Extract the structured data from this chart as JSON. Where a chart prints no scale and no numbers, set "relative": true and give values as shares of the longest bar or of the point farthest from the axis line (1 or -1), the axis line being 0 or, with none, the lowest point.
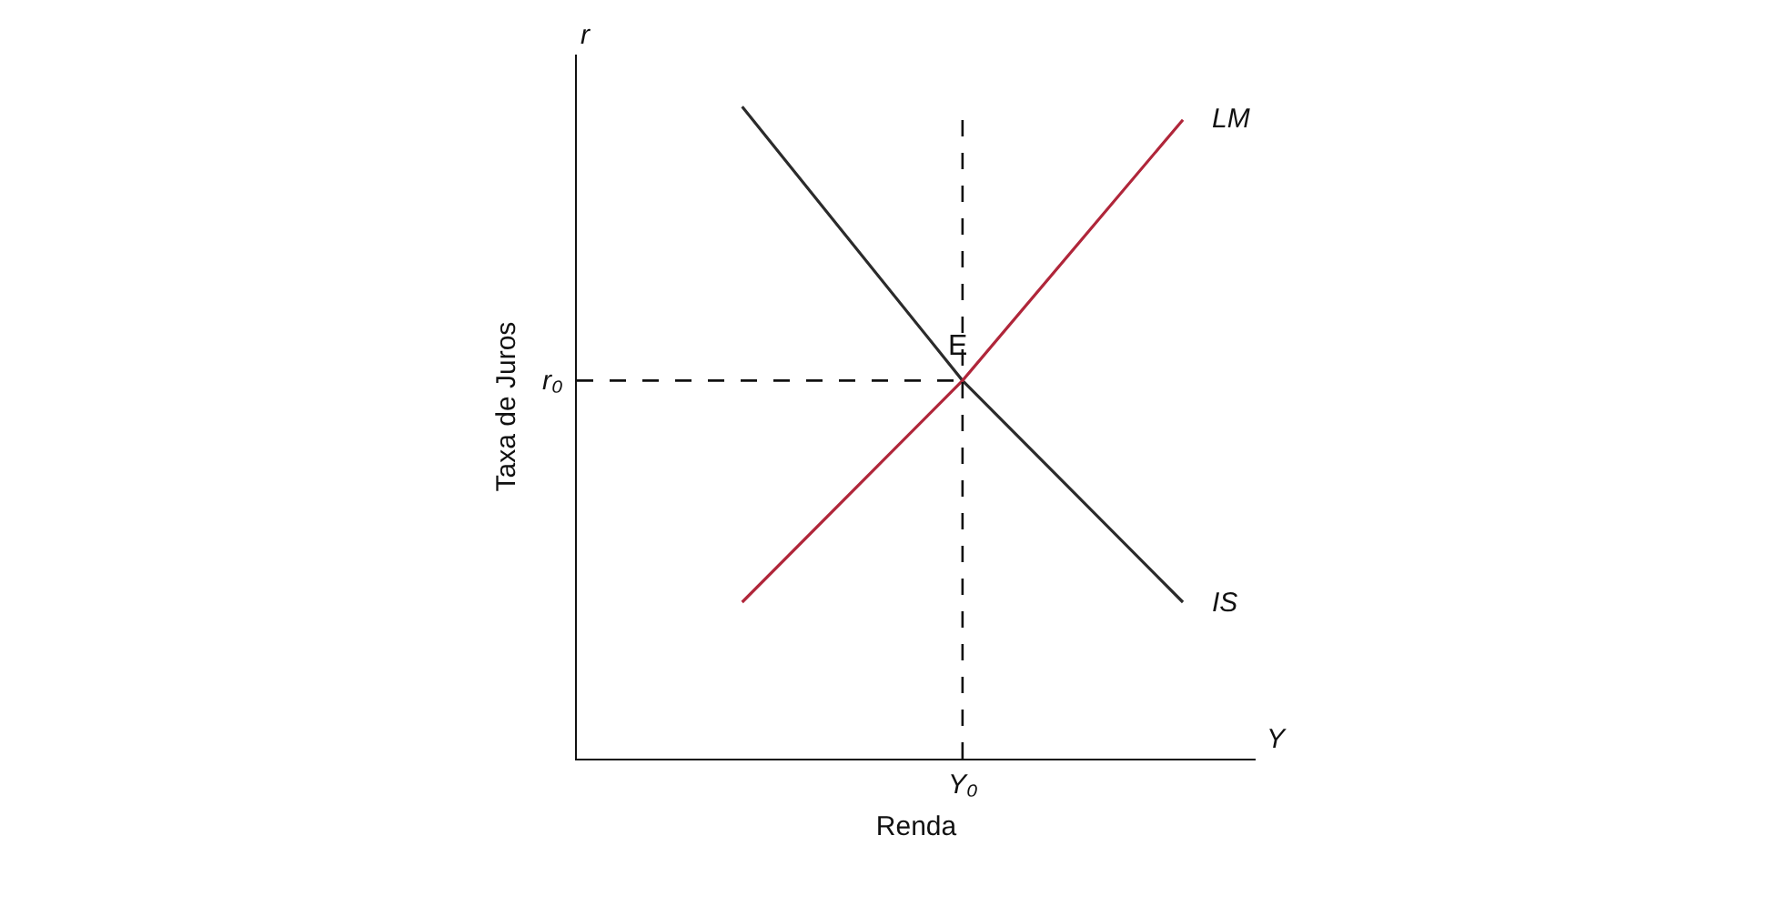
{
  "chart_data": {
    "type": "line",
    "relative": true,
    "xlabel": "Renda",
    "ylabel": "Taxa de Juros",
    "categories": [
      null,
      null,
      null
    ],
    "series": [
      {
        "name": "IS",
        "color": "#2b2b2b",
        "values": [
          1,
          0.58,
          0.24
        ]
      },
      {
        "name": "LM",
        "color": "#b0263a",
        "values": [
          0.24,
          0.58,
          0.98
        ]
      }
    ],
    "ref_lines": [
      {
        "axis": "y",
        "value": 0.58,
        "label": "r₀",
        "line_style": "dashed",
        "color": "#111111"
      }
    ],
    "annotations": [
      "r",
      "Y",
      "Y₀",
      {
        "text": "E",
        "y": 0.58
      }
    ],
    "legend": false,
    "marker": "none",
    "line_style": "solid"
  }
}
